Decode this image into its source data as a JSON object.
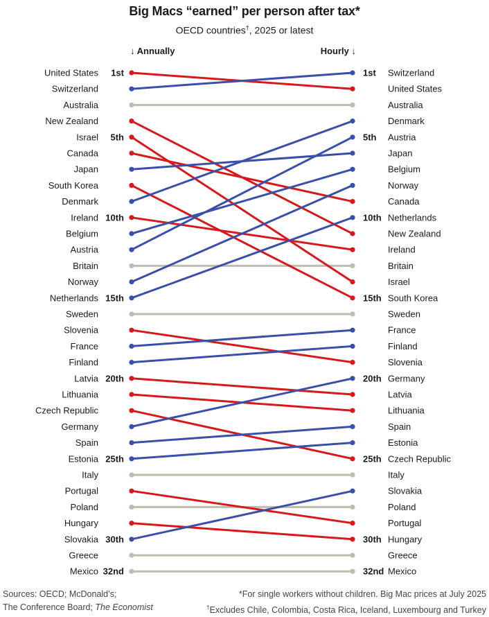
{
  "title": "Big Macs “earned” per person after tax*",
  "subtitle": "OECD countries",
  "subtitle_mark": "†",
  "subtitle_rest": ", 2025 or latest",
  "header_left": "↓ Annually",
  "header_right": "Hourly ↓",
  "footer": {
    "source_line1": "Sources: OECD; McDonald’s;",
    "source_line2a": "The Conference Board; ",
    "source_line2b": "The Economist",
    "note1": "*For single workers without children. Big Mac prices at July 2025",
    "note2_mark": "†",
    "note2": "Excludes Chile, Colombia, Costa Rica, Iceland, Luxembourg and Turkey"
  },
  "colors": {
    "up": "#3a4fa8",
    "down": "#d7191c",
    "same": "#bdbcae"
  },
  "chart_data": {
    "type": "slope",
    "x": [
      "Annually",
      "Hourly"
    ],
    "rank_labels": {
      "1": "1st",
      "5": "5th",
      "10": "10th",
      "15": "15th",
      "20": "20th",
      "25": "25th",
      "30": "30th",
      "32": "32nd"
    },
    "countries": [
      {
        "name": "United States",
        "annual_rank": 1,
        "hourly_rank": 2
      },
      {
        "name": "Switzerland",
        "annual_rank": 2,
        "hourly_rank": 1
      },
      {
        "name": "Australia",
        "annual_rank": 3,
        "hourly_rank": 3
      },
      {
        "name": "New Zealand",
        "annual_rank": 4,
        "hourly_rank": 11
      },
      {
        "name": "Israel",
        "annual_rank": 5,
        "hourly_rank": 14
      },
      {
        "name": "Canada",
        "annual_rank": 6,
        "hourly_rank": 9
      },
      {
        "name": "Japan",
        "annual_rank": 7,
        "hourly_rank": 6
      },
      {
        "name": "South Korea",
        "annual_rank": 8,
        "hourly_rank": 15
      },
      {
        "name": "Denmark",
        "annual_rank": 9,
        "hourly_rank": 4
      },
      {
        "name": "Ireland",
        "annual_rank": 10,
        "hourly_rank": 12
      },
      {
        "name": "Belgium",
        "annual_rank": 11,
        "hourly_rank": 7
      },
      {
        "name": "Austria",
        "annual_rank": 12,
        "hourly_rank": 5
      },
      {
        "name": "Britain",
        "annual_rank": 13,
        "hourly_rank": 13
      },
      {
        "name": "Norway",
        "annual_rank": 14,
        "hourly_rank": 8
      },
      {
        "name": "Netherlands",
        "annual_rank": 15,
        "hourly_rank": 10
      },
      {
        "name": "Sweden",
        "annual_rank": 16,
        "hourly_rank": 16
      },
      {
        "name": "Slovenia",
        "annual_rank": 17,
        "hourly_rank": 19
      },
      {
        "name": "France",
        "annual_rank": 18,
        "hourly_rank": 17
      },
      {
        "name": "Finland",
        "annual_rank": 19,
        "hourly_rank": 18
      },
      {
        "name": "Latvia",
        "annual_rank": 20,
        "hourly_rank": 21
      },
      {
        "name": "Lithuania",
        "annual_rank": 21,
        "hourly_rank": 22
      },
      {
        "name": "Czech Republic",
        "annual_rank": 22,
        "hourly_rank": 25
      },
      {
        "name": "Germany",
        "annual_rank": 23,
        "hourly_rank": 20
      },
      {
        "name": "Spain",
        "annual_rank": 24,
        "hourly_rank": 23
      },
      {
        "name": "Estonia",
        "annual_rank": 25,
        "hourly_rank": 24
      },
      {
        "name": "Italy",
        "annual_rank": 26,
        "hourly_rank": 26
      },
      {
        "name": "Portugal",
        "annual_rank": 27,
        "hourly_rank": 29
      },
      {
        "name": "Poland",
        "annual_rank": 28,
        "hourly_rank": 28
      },
      {
        "name": "Hungary",
        "annual_rank": 29,
        "hourly_rank": 30
      },
      {
        "name": "Slovakia",
        "annual_rank": 30,
        "hourly_rank": 27
      },
      {
        "name": "Greece",
        "annual_rank": 31,
        "hourly_rank": 31
      },
      {
        "name": "Mexico",
        "annual_rank": 32,
        "hourly_rank": 32
      }
    ]
  }
}
